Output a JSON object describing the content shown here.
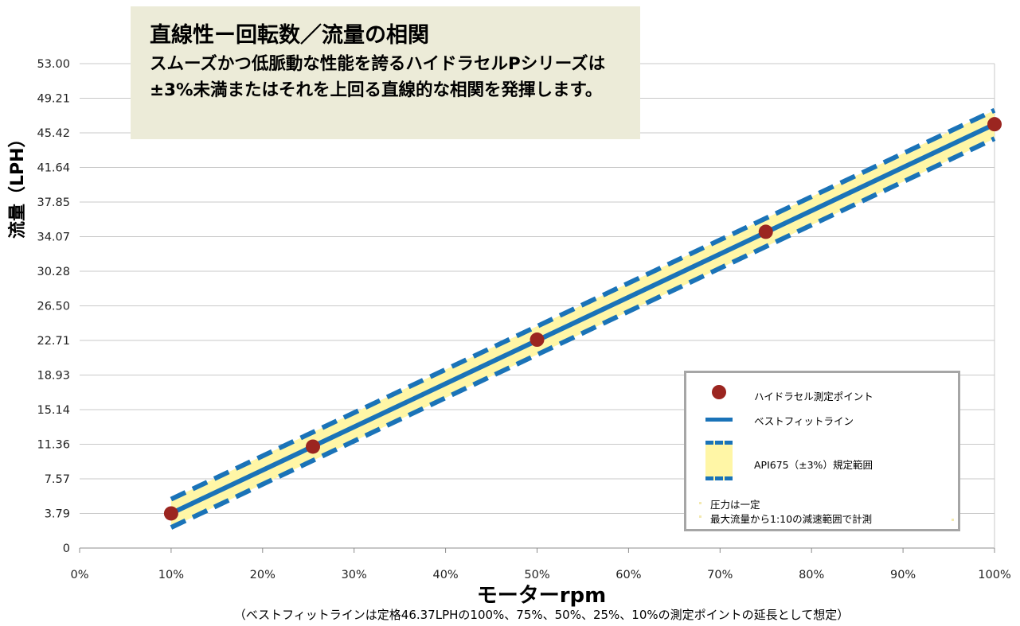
{
  "callout": {
    "title": "直線性ー回転数／流量の相関",
    "body": "スムーズかつ低脈動な性能を誇るハイドラセルPシリーズは±3%未満またはそれを上回る直線的な相関を発揮します。"
  },
  "legend": {
    "items": [
      {
        "label": "ハイドラセル測定ポイント"
      },
      {
        "label": "ベストフィットライン"
      },
      {
        "label": "API675（±3%）規定範囲"
      }
    ],
    "notes": [
      "圧力は一定",
      "最大流量から1:10の減速範囲で計測"
    ]
  },
  "footnote": "（ベストフィットラインは定格46.37LPHの100%、75%、50%、25%、10%の測定ポイントの延長として想定）",
  "chart_data": {
    "type": "line",
    "xlabel": "モーターrpm",
    "ylabel": "流量（LPH）",
    "x_ticks": [
      "0%",
      "10%",
      "20%",
      "30%",
      "40%",
      "50%",
      "60%",
      "70%",
      "80%",
      "90%",
      "100%"
    ],
    "y_ticks": [
      "0",
      "3.79",
      "7.57",
      "11.36",
      "15.14",
      "18.93",
      "22.71",
      "26.50",
      "30.28",
      "34.07",
      "37.85",
      "41.64",
      "45.42",
      "49.21",
      "53.00"
    ],
    "xlim": [
      0,
      100
    ],
    "ylim": [
      0,
      53.0
    ],
    "grid": true,
    "legend_position": "bottom-right",
    "series": [
      {
        "name": "ハイドラセル測定ポイント",
        "kind": "scatter",
        "color": "#9b2520",
        "x": [
          10,
          25.5,
          50,
          75,
          100
        ],
        "y": [
          3.79,
          11.1,
          22.8,
          34.6,
          46.37
        ]
      },
      {
        "name": "ベストフィットライン",
        "kind": "line",
        "color": "#1a73b8",
        "x": [
          10,
          100
        ],
        "y": [
          3.79,
          46.37
        ]
      },
      {
        "name": "API675（±3%）規定範囲",
        "kind": "band",
        "color": "#fff6a6",
        "edge_color": "#1a73b8",
        "x": [
          10,
          100
        ],
        "y_low": [
          2.25,
          44.8
        ],
        "y_high": [
          5.35,
          47.9
        ]
      }
    ]
  }
}
